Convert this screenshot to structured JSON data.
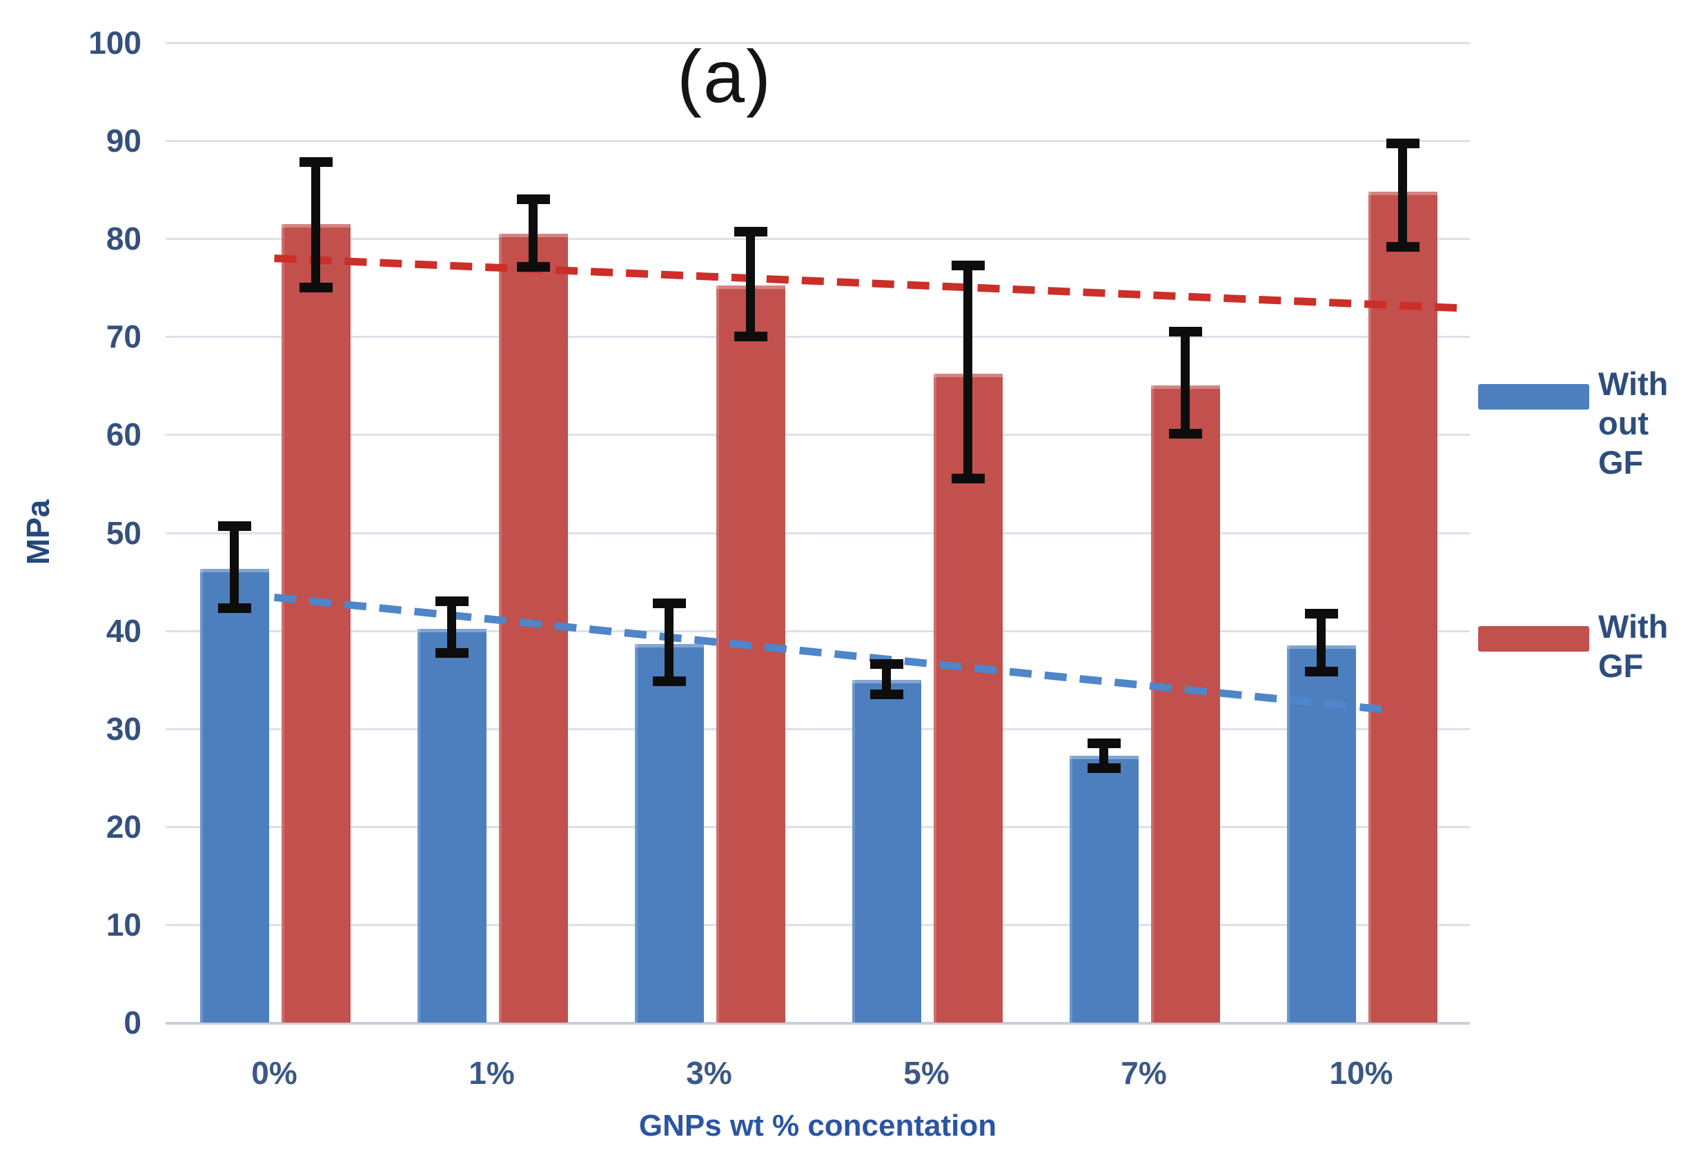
{
  "title": "(a)",
  "y_axis": {
    "label": "MPa",
    "min": 0,
    "max": 100,
    "ticks": [
      0,
      10,
      20,
      30,
      40,
      50,
      60,
      70,
      80,
      90,
      100
    ]
  },
  "x_axis": {
    "label": "GNPs wt % concentation",
    "categories": [
      "0%",
      "1%",
      "3%",
      "5%",
      "7%",
      "10%"
    ]
  },
  "legend": [
    {
      "label": "With out GF",
      "color": "#4d7fbe"
    },
    {
      "label": "With GF",
      "color": "#c2504c"
    }
  ],
  "colors": {
    "grid": "#dbe1ec",
    "baseline": "#c6cfdd",
    "error_bar": "#0d0d0d",
    "tick_text": "#35507c",
    "axis_title_text": "#2a55a0"
  },
  "chart_data": {
    "type": "bar",
    "title": "(a)",
    "xlabel": "GNPs wt % concentation",
    "ylabel": "MPa",
    "ylim": [
      0,
      100
    ],
    "grid": true,
    "legend_position": "right",
    "categories": [
      "0%",
      "1%",
      "3%",
      "5%",
      "7%",
      "10%"
    ],
    "series": [
      {
        "name": "With out GF",
        "color": "#4d7fbe",
        "values": [
          46.3,
          40.2,
          38.6,
          35.0,
          27.2,
          38.5
        ],
        "error_high": [
          50.7,
          43.0,
          42.8,
          36.6,
          28.5,
          41.7
        ],
        "error_low": [
          42.3,
          37.7,
          34.8,
          33.5,
          26.0,
          35.8
        ],
        "trendline": {
          "style": "dashed",
          "color": "#4e86c9",
          "start_value": 43.4,
          "end_value": 31.9
        }
      },
      {
        "name": "With GF",
        "color": "#c2504c",
        "values": [
          81.5,
          80.5,
          75.2,
          66.2,
          65.0,
          84.8
        ],
        "error_high": [
          87.8,
          84.0,
          80.7,
          77.3,
          70.5,
          89.7
        ],
        "error_low": [
          75.0,
          77.1,
          70.0,
          55.5,
          60.1,
          79.2
        ],
        "trendline": {
          "style": "dashed",
          "color": "#cb2f28",
          "start_value": 78.0,
          "end_value": 72.9
        }
      }
    ]
  }
}
